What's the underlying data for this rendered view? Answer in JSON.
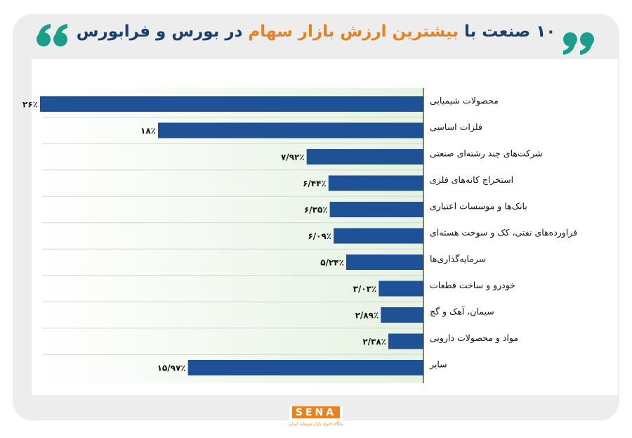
{
  "chart_data": {
    "type": "hbar",
    "title_parts": [
      "۱۰ صنعت با",
      "بیشترین ارزش بازار سهام",
      "در بورس و فرابورس"
    ],
    "categories": [
      "محصولات شیمیایی",
      "فلزات اساسی",
      "شرکت‌های چند رشته‌ای صنعتی",
      "استخراج کانه‌های فلزی",
      "بانک‌ها و موسسات اعتباری",
      "فراورده‌های نفتی، کک و سوخت هسته‌ای",
      "سرمایه‌گذاری‌ها",
      "خودرو و ساخت قطعات",
      "سیمان، آهک و گچ",
      "مواد و محصولات دارویی",
      "سایر"
    ],
    "values": [
      26,
      18,
      7.92,
      6.44,
      6.35,
      6.09,
      5.24,
      3.03,
      2.89,
      2.38,
      15.97
    ],
    "value_labels": [
      "۲۶٪",
      "۱۸٪",
      "۷/۹۲٪",
      "۶/۴۴٪",
      "۶/۳۵٪",
      "۶/۰۹٪",
      "۵/۲۴٪",
      "۳/۰۳٪",
      "۲/۸۹٪",
      "۲/۳۸٪",
      "۱۵/۹۷٪"
    ],
    "color": "#1f5197"
  },
  "logo": {
    "text": "SENA",
    "tagline": "پایگاه خبری بازار سرمایه ایران"
  }
}
